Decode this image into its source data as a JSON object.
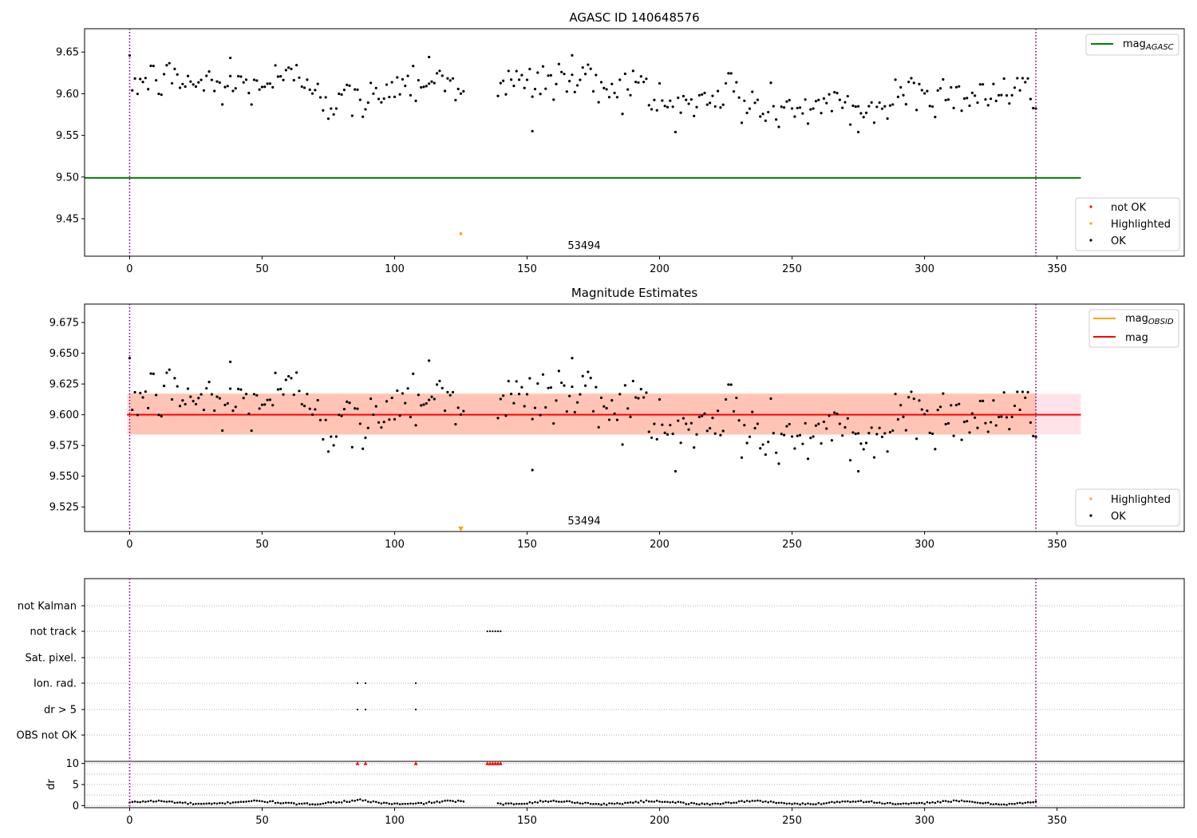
{
  "chart_data": [
    {
      "type": "scatter",
      "title": "AGASC ID 140648576",
      "xlim": [
        -17,
        398
      ],
      "ylim": [
        9.405,
        9.678
      ],
      "xticks": [
        0,
        50,
        100,
        150,
        200,
        250,
        300,
        350
      ],
      "yticks": [
        9.45,
        9.5,
        9.55,
        9.6,
        9.65
      ],
      "ytick_labels": [
        "9.45",
        "9.50",
        "9.55",
        "9.60",
        "9.65"
      ],
      "vlines": [
        0,
        342
      ],
      "annotation": {
        "text": "53494",
        "x": 171,
        "y": 9.412
      },
      "lines": [
        {
          "name": "mag",
          "name_sub": "AGASC",
          "color": "#008000",
          "y": 9.499,
          "x": [
            -17,
            359
          ]
        }
      ],
      "legend_lines_position": "upper-right",
      "legend_points_position": "lower-right",
      "highlighted_points": [
        {
          "x": 125,
          "y": 9.432
        }
      ],
      "legend_points": [
        {
          "label": "not OK",
          "color": "#ff0000"
        },
        {
          "label": "Highlighted",
          "color": "#ffa500"
        },
        {
          "label": "OK",
          "color": "#000000"
        }
      ]
    },
    {
      "type": "scatter",
      "title": "Magnitude Estimates",
      "xlim": [
        -17,
        398
      ],
      "ylim": [
        9.505,
        9.69
      ],
      "xticks": [
        0,
        50,
        100,
        150,
        200,
        250,
        300,
        350
      ],
      "yticks": [
        9.525,
        9.55,
        9.575,
        9.6,
        9.625,
        9.65,
        9.675
      ],
      "ytick_labels": [
        "9.525",
        "9.550",
        "9.575",
        "9.600",
        "9.625",
        "9.650",
        "9.675"
      ],
      "vlines": [
        0,
        342
      ],
      "annotation": {
        "text": "53494",
        "x": 171,
        "y": 9.512
      },
      "mag": 9.6,
      "band_full": {
        "x": [
          -1,
          359
        ],
        "y": [
          9.584,
          9.617
        ],
        "color": "#ffc0cb"
      },
      "band_obs": {
        "x": [
          0,
          342
        ],
        "y": [
          9.584,
          9.617
        ],
        "color": "#ffa07a"
      },
      "lines": [
        {
          "name": "mag",
          "name_sub": "OBSID",
          "color": "#ffa500"
        },
        {
          "name": "mag",
          "name_sub": "",
          "color": "#ff0000"
        }
      ],
      "legend_lines_position": "upper-right",
      "legend_points_position": "lower-right",
      "highlighted_points": [
        {
          "x": 125,
          "y": 9.507
        }
      ],
      "legend_points": [
        {
          "label": "Highlighted",
          "color": "#ffa500"
        },
        {
          "label": "OK",
          "color": "#000000"
        }
      ]
    },
    {
      "type": "scatter",
      "xlim": [
        -17,
        398
      ],
      "xticks": [
        0,
        50,
        100,
        150,
        200,
        250,
        300,
        350
      ],
      "vlines": [
        0,
        342
      ],
      "flag_rows": [
        "not Kalman",
        "not track",
        "Sat. pixel.",
        "Ion. rad.",
        "dr > 5",
        "OBS not OK"
      ],
      "flags": {
        "not track": [
          135,
          136,
          137,
          138,
          139,
          140
        ],
        "Ion. rad.": [
          86,
          89,
          108
        ],
        "dr > 5": [
          86,
          89,
          108
        ]
      },
      "dr": {
        "ylabel": "dr",
        "ylim": [
          -0.5,
          10.5
        ],
        "yticks": [
          0,
          5,
          10
        ],
        "clipped_points": [
          86,
          89,
          108,
          135,
          136,
          137,
          138,
          139,
          140
        ],
        "clip_value": 10
      }
    }
  ]
}
